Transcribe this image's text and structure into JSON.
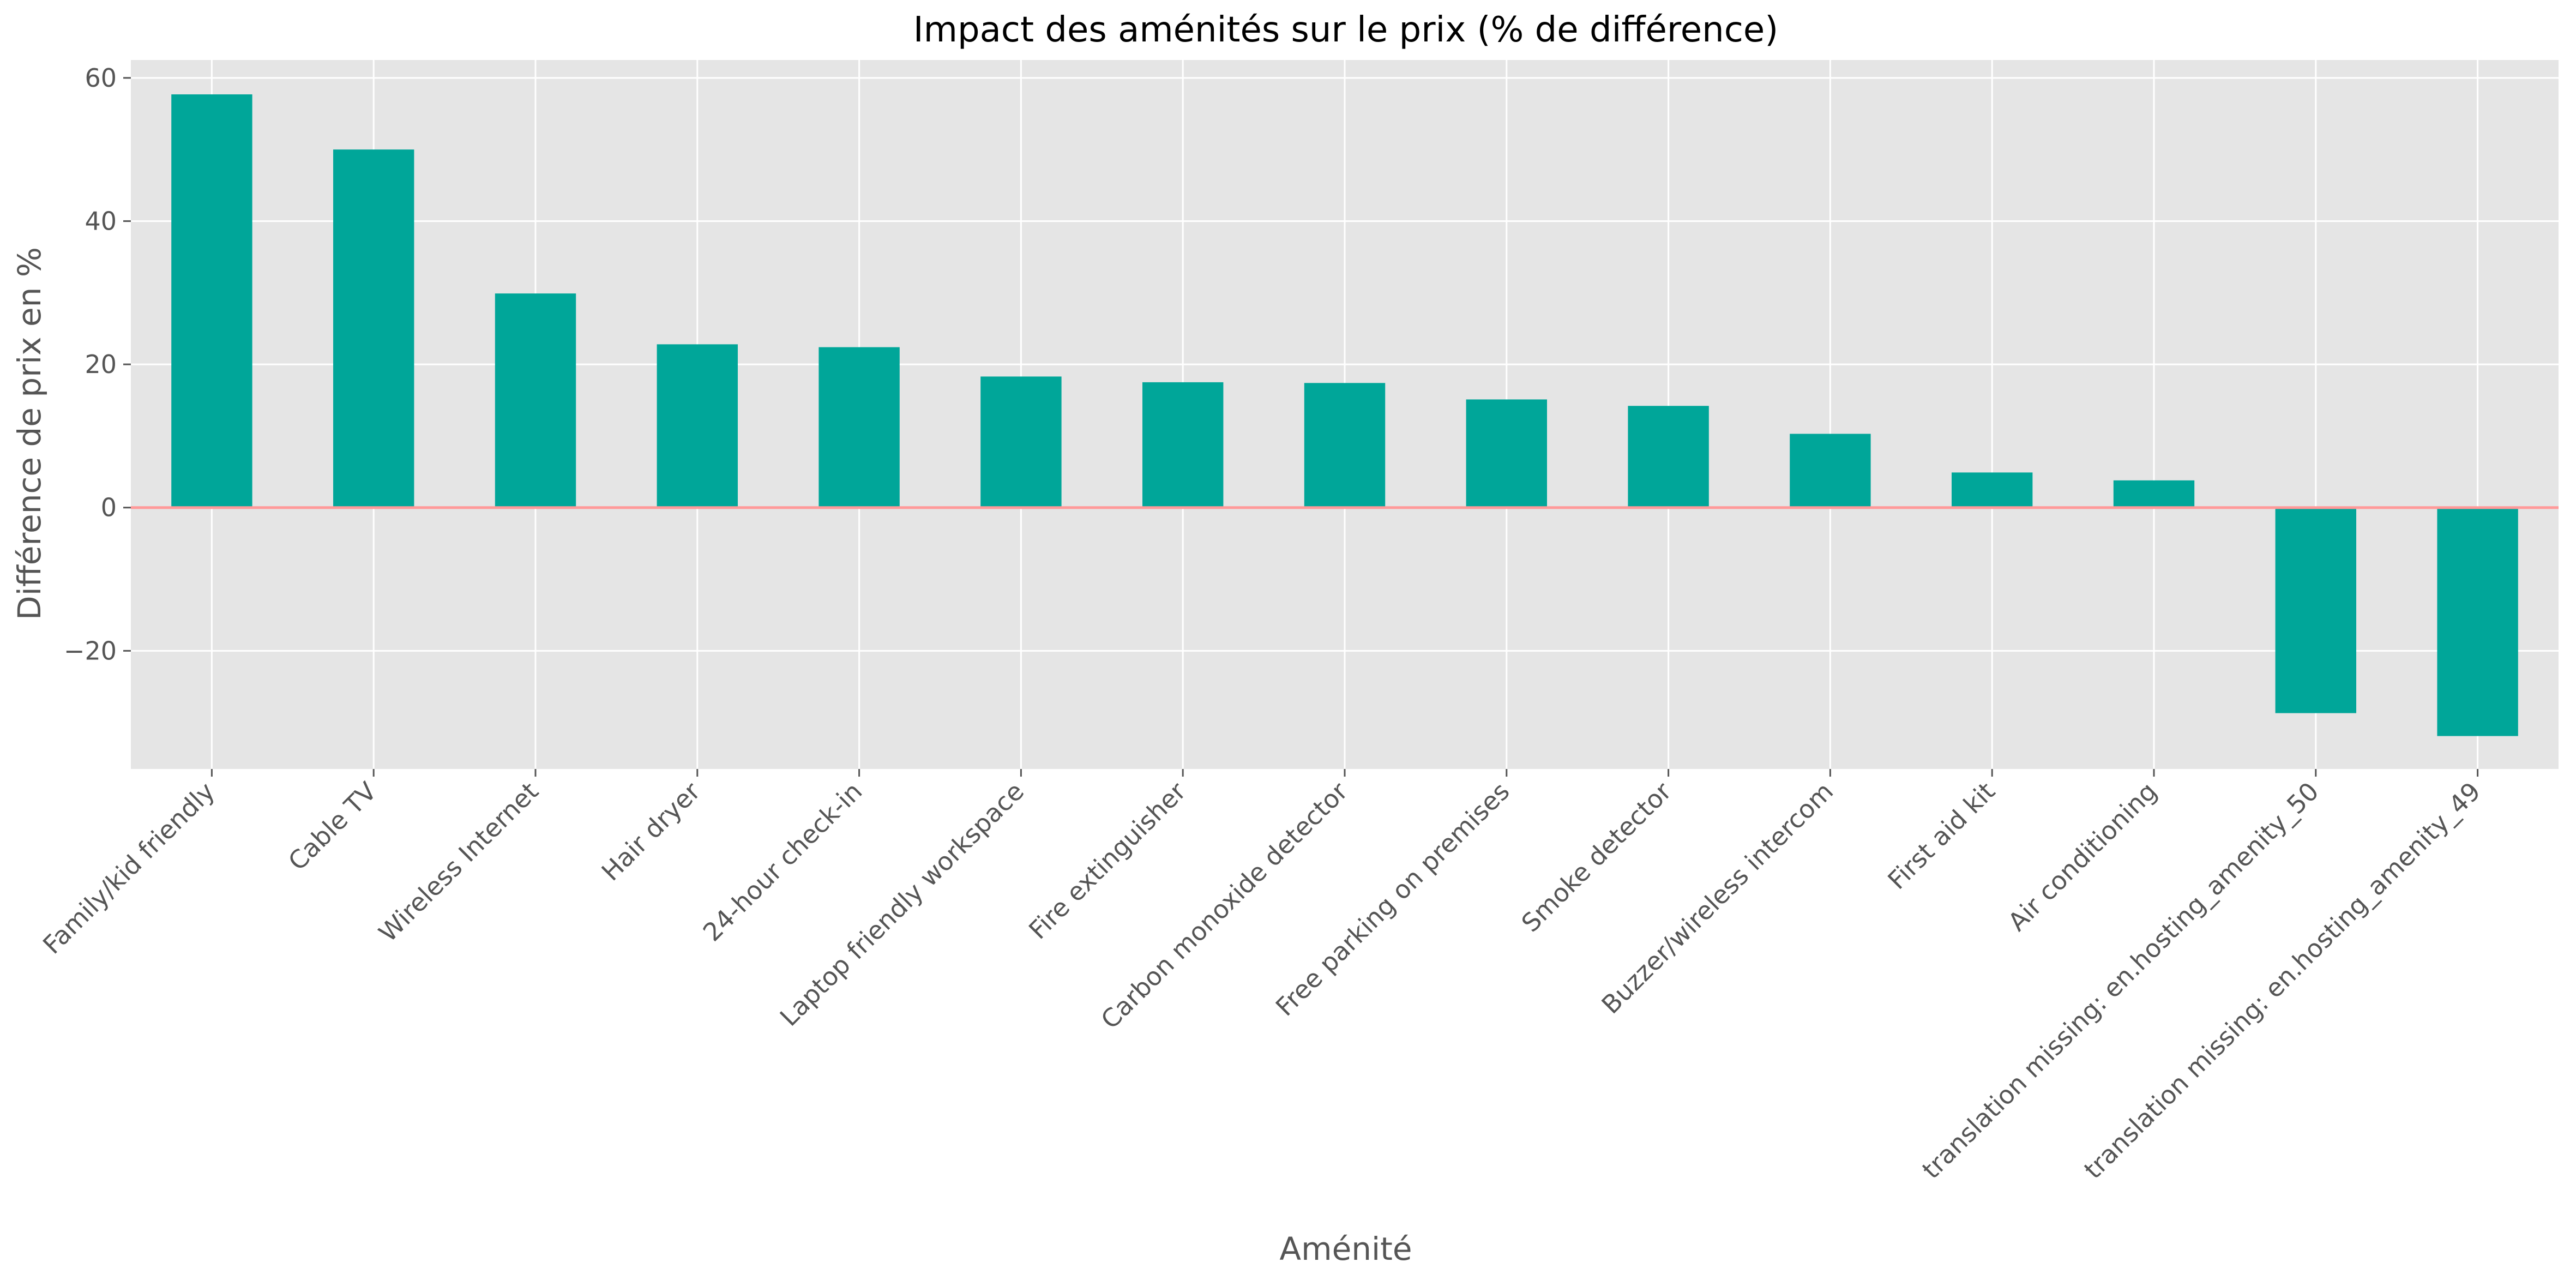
{
  "chart_data": {
    "type": "bar",
    "title": "Impact des aménités sur le prix (% de différence)",
    "xlabel": "Aménité",
    "ylabel": "Différence de prix en %",
    "categories": [
      "Family/kid friendly",
      "Cable TV",
      "Wireless Internet",
      "Hair dryer",
      "24-hour check-in",
      "Laptop friendly workspace",
      "Fire extinguisher",
      "Carbon monoxide detector",
      "Free parking on premises",
      "Smoke detector",
      "Buzzer/wireless intercom",
      "First aid kit",
      "Air conditioning",
      "translation missing: en.hosting_amenity_50",
      "translation missing: en.hosting_amenity_49"
    ],
    "values": [
      57.7,
      50.0,
      29.9,
      22.8,
      22.4,
      18.3,
      17.5,
      17.4,
      15.1,
      14.2,
      10.3,
      4.9,
      3.8,
      -28.7,
      -31.9
    ],
    "ylim": [
      -36.5,
      62.5
    ],
    "yticks": [
      -20,
      0,
      20,
      40,
      60
    ],
    "ytick_labels": [
      "−20",
      "0",
      "20",
      "40",
      "60"
    ],
    "grid": true,
    "colors": {
      "bar": "#00A699",
      "zero_line": "#FF9999",
      "plot_background": "#E5E5E5",
      "grid": "#FFFFFF"
    }
  }
}
